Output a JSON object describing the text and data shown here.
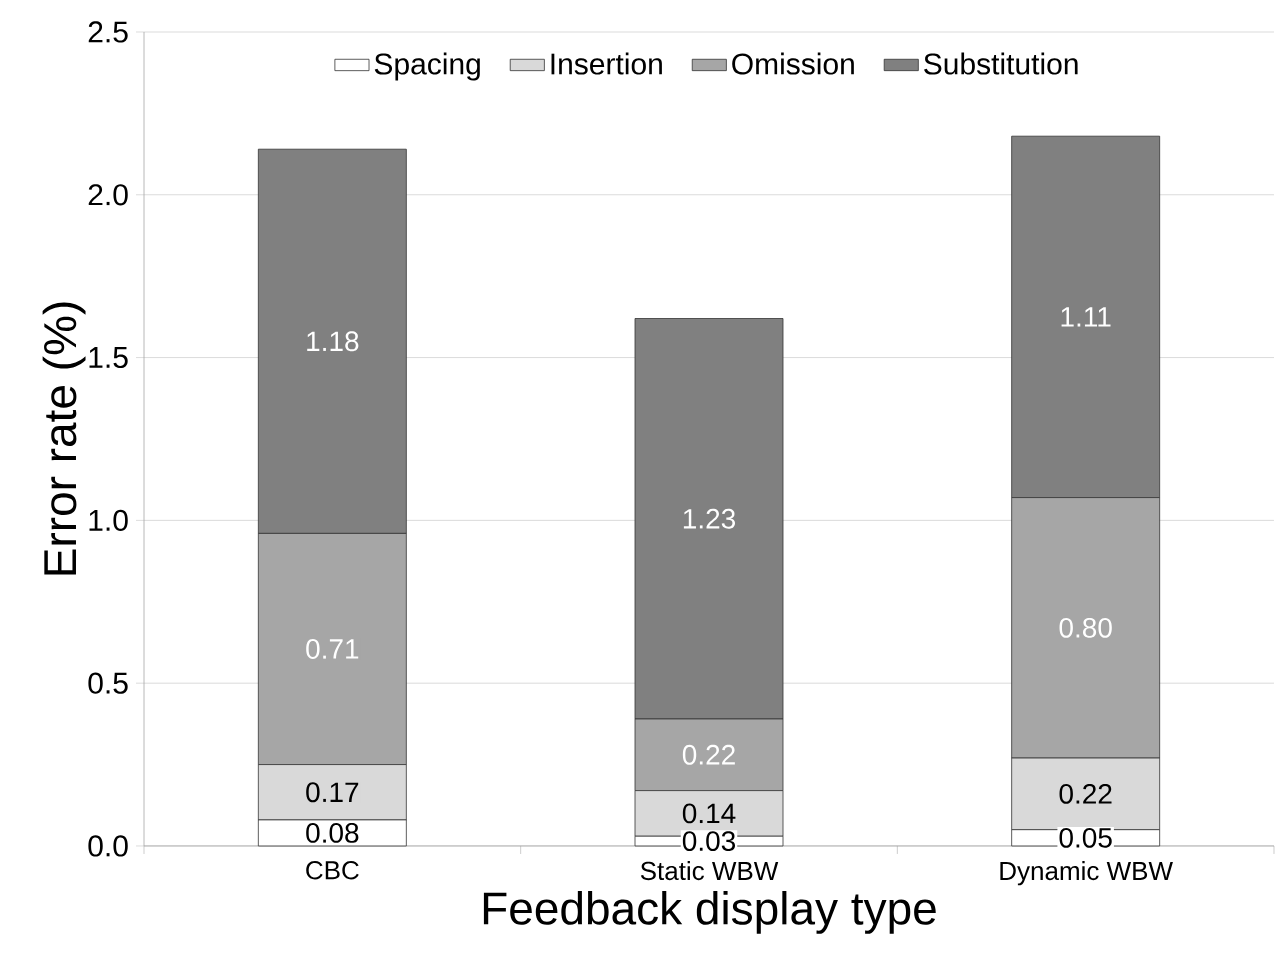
{
  "chart_data": {
    "type": "bar",
    "stacked": true,
    "xlabel": "Feedback display type",
    "ylabel": "Error rate (%)",
    "categories": [
      "CBC",
      "Static WBW",
      "Dynamic WBW"
    ],
    "series": [
      {
        "name": "Spacing",
        "color": "#ffffff",
        "values": [
          0.08,
          0.03,
          0.05
        ],
        "value_labels": [
          "0.08",
          "0.03",
          "0.05"
        ]
      },
      {
        "name": "Insertion",
        "color": "#d9d9d9",
        "values": [
          0.17,
          0.14,
          0.22
        ],
        "value_labels": [
          "0.17",
          "0.14",
          "0.22"
        ]
      },
      {
        "name": "Omission",
        "color": "#a6a6a6",
        "values": [
          0.71,
          0.22,
          0.8
        ],
        "value_labels": [
          "0.71",
          "0.22",
          "0.80"
        ]
      },
      {
        "name": "Substitution",
        "color": "#808080",
        "values": [
          1.18,
          1.23,
          1.11
        ],
        "value_labels": [
          "1.18",
          "1.23",
          "1.11"
        ]
      }
    ],
    "ylim": [
      0,
      2.5
    ],
    "yticks": [
      {
        "value": 0,
        "label": "0.0"
      },
      {
        "value": 0.5,
        "label": "0.5"
      },
      {
        "value": 1,
        "label": "1.0"
      },
      {
        "value": 1.5,
        "label": "1.5"
      },
      {
        "value": 2,
        "label": "2.0"
      },
      2.5
    ],
    "grid": "y",
    "legend": "top"
  }
}
